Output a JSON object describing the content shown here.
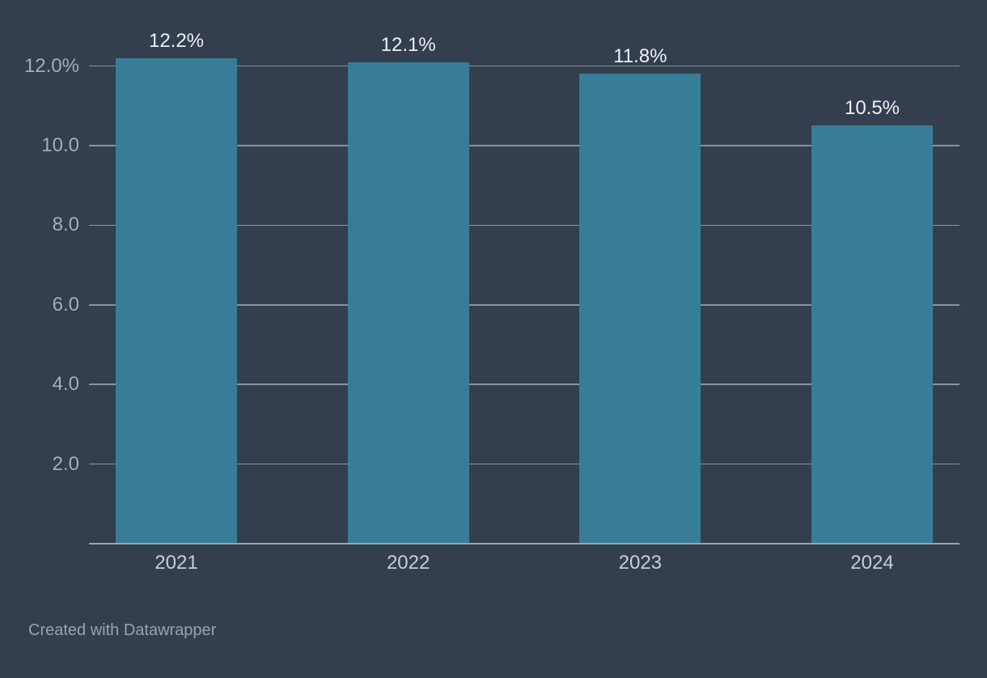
{
  "chart_data": {
    "type": "bar",
    "title": "",
    "xlabel": "",
    "ylabel": "",
    "categories": [
      "2021",
      "2022",
      "2023",
      "2024"
    ],
    "values": [
      12.2,
      12.1,
      11.8,
      10.5
    ],
    "value_labels": [
      "12.2%",
      "12.1%",
      "11.8%",
      "10.5%"
    ],
    "ylim": [
      0,
      12.2
    ],
    "yticks": [
      {
        "value": 2,
        "label": "2.0"
      },
      {
        "value": 4,
        "label": "4.0"
      },
      {
        "value": 6,
        "label": "6.0"
      },
      {
        "value": 8,
        "label": "8.0"
      },
      {
        "value": 10,
        "label": "10.0"
      },
      {
        "value": 12,
        "label": "12.0%"
      }
    ],
    "grid": true,
    "legend": "none",
    "colors": {
      "background": "#333E4E",
      "bar": "#387D97",
      "gridline": "#8E9298",
      "axis_line": "#9FA3A8",
      "y_tick_label": "#A8ACB2",
      "x_tick_label": "#C9CDD2",
      "value_label": "#EEF0F3",
      "attribution": "#9BA1A9"
    }
  },
  "footer": {
    "attribution": "Created with Datawrapper"
  }
}
